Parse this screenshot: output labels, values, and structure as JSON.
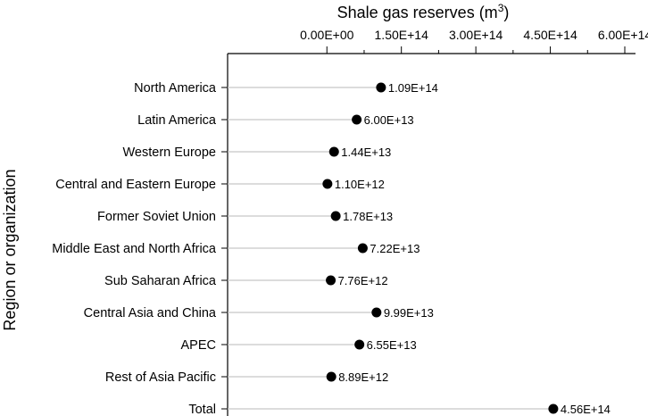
{
  "chart_data": {
    "type": "scatter",
    "orientation": "horizontal",
    "title": "",
    "xlabel": "Shale gas reserves (m",
    "xlabel_superscript": "3",
    "xlabel_suffix": ")",
    "ylabel": "Region or organization",
    "xaxis_position": "top",
    "xlim": [
      -200000000000000,
      600000000000000
    ],
    "xticks": [
      0,
      150000000000000,
      300000000000000,
      450000000000000,
      600000000000000
    ],
    "xtick_labels": [
      "0.00E+00",
      "1.50E+14",
      "3.00E+14",
      "4.50E+14",
      "6.00E+14"
    ],
    "grid": false,
    "legend": "none",
    "marker_color": "#000000",
    "leader_line_color": "#c8c8c8",
    "categories": [
      "North America",
      "Latin America",
      "Western Europe",
      "Central and Eastern Europe",
      "Former Soviet Union",
      "Middle East and North Africa",
      "Sub Saharan Africa",
      "Central Asia and China",
      "APEC",
      "Rest of Asia Pacific",
      "Total"
    ],
    "values": [
      109000000000000,
      60000000000000,
      14400000000000,
      1100000000000,
      17800000000000,
      72200000000000,
      7760000000000,
      99900000000000,
      65500000000000,
      8890000000000,
      456000000000000
    ],
    "data_labels": [
      "1.09E+14",
      "6.00E+13",
      "1.44E+13",
      "1.10E+12",
      "1.78E+13",
      "7.22E+13",
      "7.76E+12",
      "9.99E+13",
      "6.55E+13",
      "8.89E+12",
      "4.56E+14"
    ]
  }
}
